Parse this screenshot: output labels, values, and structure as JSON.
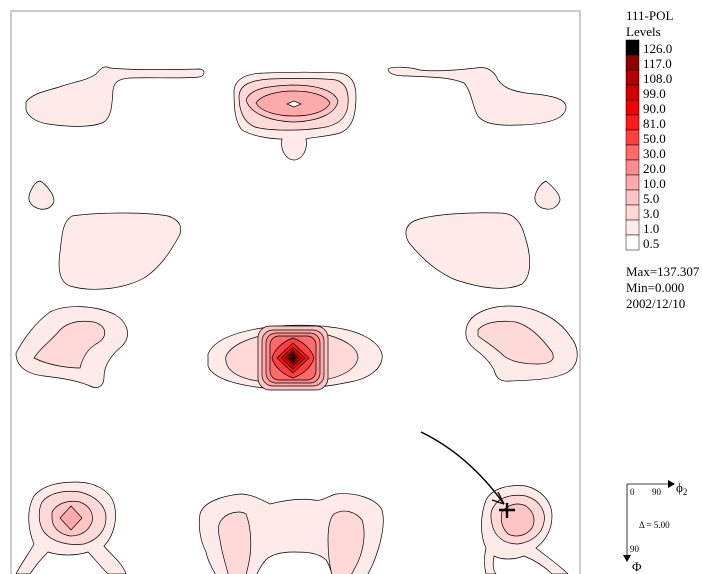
{
  "chart_data": {
    "type": "heatmap",
    "subtype": "pole-figure-contour",
    "title": "111-POL",
    "legend": {
      "title": "Levels",
      "levels": [
        "126.0",
        "117.0",
        "108.0",
        "99.0",
        "90.0",
        "81.0",
        "50.0",
        "30.0",
        "20.0",
        "10.0",
        "5.0",
        "3.0",
        "1.0",
        "0.5"
      ],
      "colors": [
        "#000000",
        "#8b0000",
        "#b40000",
        "#d40000",
        "#f20000",
        "#ff1a1a",
        "#ff4040",
        "#ff6a6a",
        "#ff8c8c",
        "#ffaaaa",
        "#ffc4c4",
        "#ffd8d8",
        "#ffeaea",
        "#ffffff"
      ],
      "placement": "right"
    },
    "stats": {
      "max": "Max=137.307",
      "min": "Min=0.000",
      "date": "2002/12/10"
    },
    "axes_key": {
      "origin": "0",
      "x_end": "90",
      "x_label": "ϕ",
      "x_sub": "2",
      "y_end": "90",
      "y_label": "Φ",
      "delta": "Δ  = 5.00"
    },
    "peak_level": 126.0
  }
}
